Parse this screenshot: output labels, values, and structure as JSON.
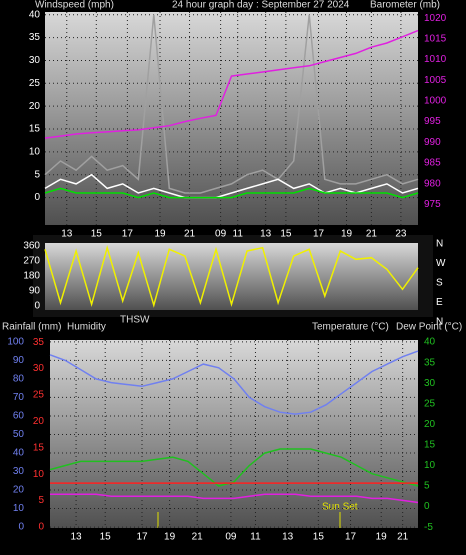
{
  "chart_data": [
    {
      "type": "line",
      "title": "24 hour graph day : September 27 2024",
      "y_label": "Windspeed (mph)",
      "y2_label": "Barometer (mb)",
      "x": [
        0,
        1,
        2,
        3,
        4,
        5,
        6,
        7,
        8,
        9,
        10,
        11,
        12,
        13,
        14,
        15,
        16,
        17,
        18,
        19,
        20,
        21,
        22,
        23,
        24
      ],
      "xlim": [
        0,
        24
      ],
      "xticks": [
        {
          "value": 1.4,
          "label": "13"
        },
        {
          "value": 3.3,
          "label": "15"
        },
        {
          "value": 5.3,
          "label": "17"
        },
        {
          "value": 7.4,
          "label": "19"
        },
        {
          "value": 9.3,
          "label": "21"
        },
        {
          "value": 11.3,
          "label": "09"
        },
        {
          "value": 12.4,
          "label": "11"
        },
        {
          "value": 14.2,
          "label": "13"
        },
        {
          "value": 15.5,
          "label": "15"
        },
        {
          "value": 17.6,
          "label": "17"
        },
        {
          "value": 19.4,
          "label": "19"
        },
        {
          "value": 21,
          "label": "21"
        },
        {
          "value": 22.9,
          "label": "23"
        }
      ],
      "ylim": [
        -6,
        40.6
      ],
      "yticks": [
        0,
        5,
        10,
        15,
        20,
        25,
        30,
        35,
        40
      ],
      "y2lim": [
        970,
        1021.5
      ],
      "y2ticks": [
        975,
        980,
        985,
        990,
        995,
        1000,
        1005,
        1010,
        1015,
        1020
      ],
      "grid": true,
      "series": [
        {
          "color": "#a0a0a0",
          "values": [
            5,
            8,
            6,
            9,
            6,
            7,
            4,
            40,
            2,
            1,
            1,
            2,
            3,
            5,
            6,
            4,
            8,
            40,
            4,
            3,
            3,
            4,
            5,
            3,
            4
          ]
        },
        {
          "color": "#ffffff",
          "values": [
            2,
            4,
            3,
            5,
            2,
            3,
            1,
            2,
            1,
            0,
            0,
            0,
            1,
            2,
            3,
            4,
            2,
            3,
            1,
            2,
            1,
            2,
            3,
            1,
            2
          ]
        },
        {
          "color": "#00e000",
          "values": [
            1,
            2,
            1,
            1,
            1,
            1,
            0,
            1,
            0,
            0,
            0,
            0,
            0,
            1,
            1,
            1,
            1,
            2,
            1,
            1,
            1,
            1,
            1,
            0,
            1
          ]
        },
        {
          "color": "#e020e0",
          "axis": "y2",
          "values": [
            991,
            991.5,
            992,
            992.3,
            992.5,
            992.8,
            993,
            993.5,
            994,
            995,
            995.8,
            996.5,
            1006,
            1006.5,
            1007,
            1007.5,
            1008,
            1008.5,
            1009.5,
            1010.5,
            1011.5,
            1013,
            1014,
            1015.5,
            1017
          ]
        }
      ]
    },
    {
      "type": "line",
      "annotation": "THSW",
      "x": [
        0,
        1,
        2,
        3,
        4,
        5,
        6,
        7,
        8,
        9,
        10,
        11,
        12,
        13,
        14,
        15,
        16,
        17,
        18,
        19,
        20,
        21,
        22,
        23,
        24
      ],
      "xlim": [
        0,
        24
      ],
      "ylim": [
        -24,
        378
      ],
      "yticks": [
        0,
        90,
        180,
        270,
        360
      ],
      "y2lim": [
        55.4,
        364.6
      ],
      "y2ticks": [
        {
          "value": 360,
          "label": "N"
        },
        {
          "value": 270,
          "label": "W"
        },
        {
          "value": 180,
          "label": "S"
        },
        {
          "value": 90,
          "label": "E"
        },
        {
          "value": 0,
          "label": "N"
        }
      ],
      "series": [
        {
          "color": "#f0f000",
          "values": [
            340,
            20,
            330,
            10,
            350,
            30,
            320,
            5,
            340,
            300,
            20,
            340,
            10,
            330,
            350,
            20,
            300,
            340,
            60,
            330,
            280,
            290,
            220,
            100,
            230
          ]
        }
      ]
    },
    {
      "type": "line",
      "y_label": "Humidity",
      "y3_label": "Rainfall (mm)",
      "y2_label": "Temperature (°C)",
      "y4_label": "Dew Point (°C)",
      "annotation": "Sun Set",
      "x": [
        0,
        1,
        2,
        3,
        4,
        5,
        6,
        7,
        8,
        9,
        10,
        11,
        12,
        13,
        14,
        15,
        16,
        17,
        18,
        19,
        20,
        21,
        22,
        23,
        24
      ],
      "xlim": [
        0,
        24
      ],
      "xticks": [
        {
          "value": 1.7,
          "label": "13"
        },
        {
          "value": 3.6,
          "label": "15"
        },
        {
          "value": 6,
          "label": "17"
        },
        {
          "value": 7.8,
          "label": "19"
        },
        {
          "value": 9.6,
          "label": "21"
        },
        {
          "value": 11.8,
          "label": "09"
        },
        {
          "value": 13.4,
          "label": "11"
        },
        {
          "value": 15.5,
          "label": "13"
        },
        {
          "value": 17.5,
          "label": "15"
        },
        {
          "value": 19.6,
          "label": "17"
        },
        {
          "value": 21.6,
          "label": "19"
        },
        {
          "value": 23,
          "label": "21"
        }
      ],
      "ylim": [
        -0.5,
        101
      ],
      "yticks": [
        0,
        10,
        20,
        30,
        40,
        50,
        60,
        70,
        80,
        90,
        100
      ],
      "y3lim": [
        -0.2,
        35.4
      ],
      "y3ticks": [
        0,
        5,
        10,
        15,
        20,
        25,
        30,
        35
      ],
      "y2lim": [
        -5.2,
        40.5
      ],
      "y2ticks": [
        -5,
        0,
        5,
        10,
        15,
        20,
        25,
        30,
        35,
        40
      ],
      "grid": true,
      "series": [
        {
          "color": "#7080f0",
          "values": [
            93,
            90,
            85,
            80,
            78,
            77,
            76,
            78,
            80,
            84,
            88,
            86,
            80,
            70,
            65,
            62,
            61,
            62,
            66,
            72,
            78,
            84,
            88,
            92,
            95
          ]
        },
        {
          "color": "#20c020",
          "axis": "y2",
          "values": [
            9,
            10,
            11,
            11,
            11,
            11,
            11,
            11.5,
            12,
            11,
            8,
            5,
            6,
            10,
            13,
            14,
            14,
            14,
            13,
            12,
            10,
            8,
            7,
            6,
            5
          ]
        },
        {
          "color": "#e020e0",
          "axis": "y2",
          "values": [
            3,
            3,
            3,
            3,
            2.5,
            2.5,
            2.5,
            2.5,
            2.5,
            2.5,
            2,
            2,
            2,
            2.5,
            3,
            3,
            3,
            2.5,
            2.5,
            2.5,
            2.5,
            2,
            2,
            1.5,
            1
          ]
        },
        {
          "color": "#ff2020",
          "axis": "y3",
          "values": [
            8.3,
            8.3,
            8.3,
            8.3,
            8.3,
            8.3,
            8.3,
            8.3,
            8.3,
            8.3,
            8.3,
            8.3,
            8.3,
            8.3,
            8.3,
            8.3,
            8.3,
            8.3,
            8.3,
            8.3,
            8.3,
            8.3,
            8.3,
            8.3,
            8.3
          ]
        }
      ]
    }
  ]
}
